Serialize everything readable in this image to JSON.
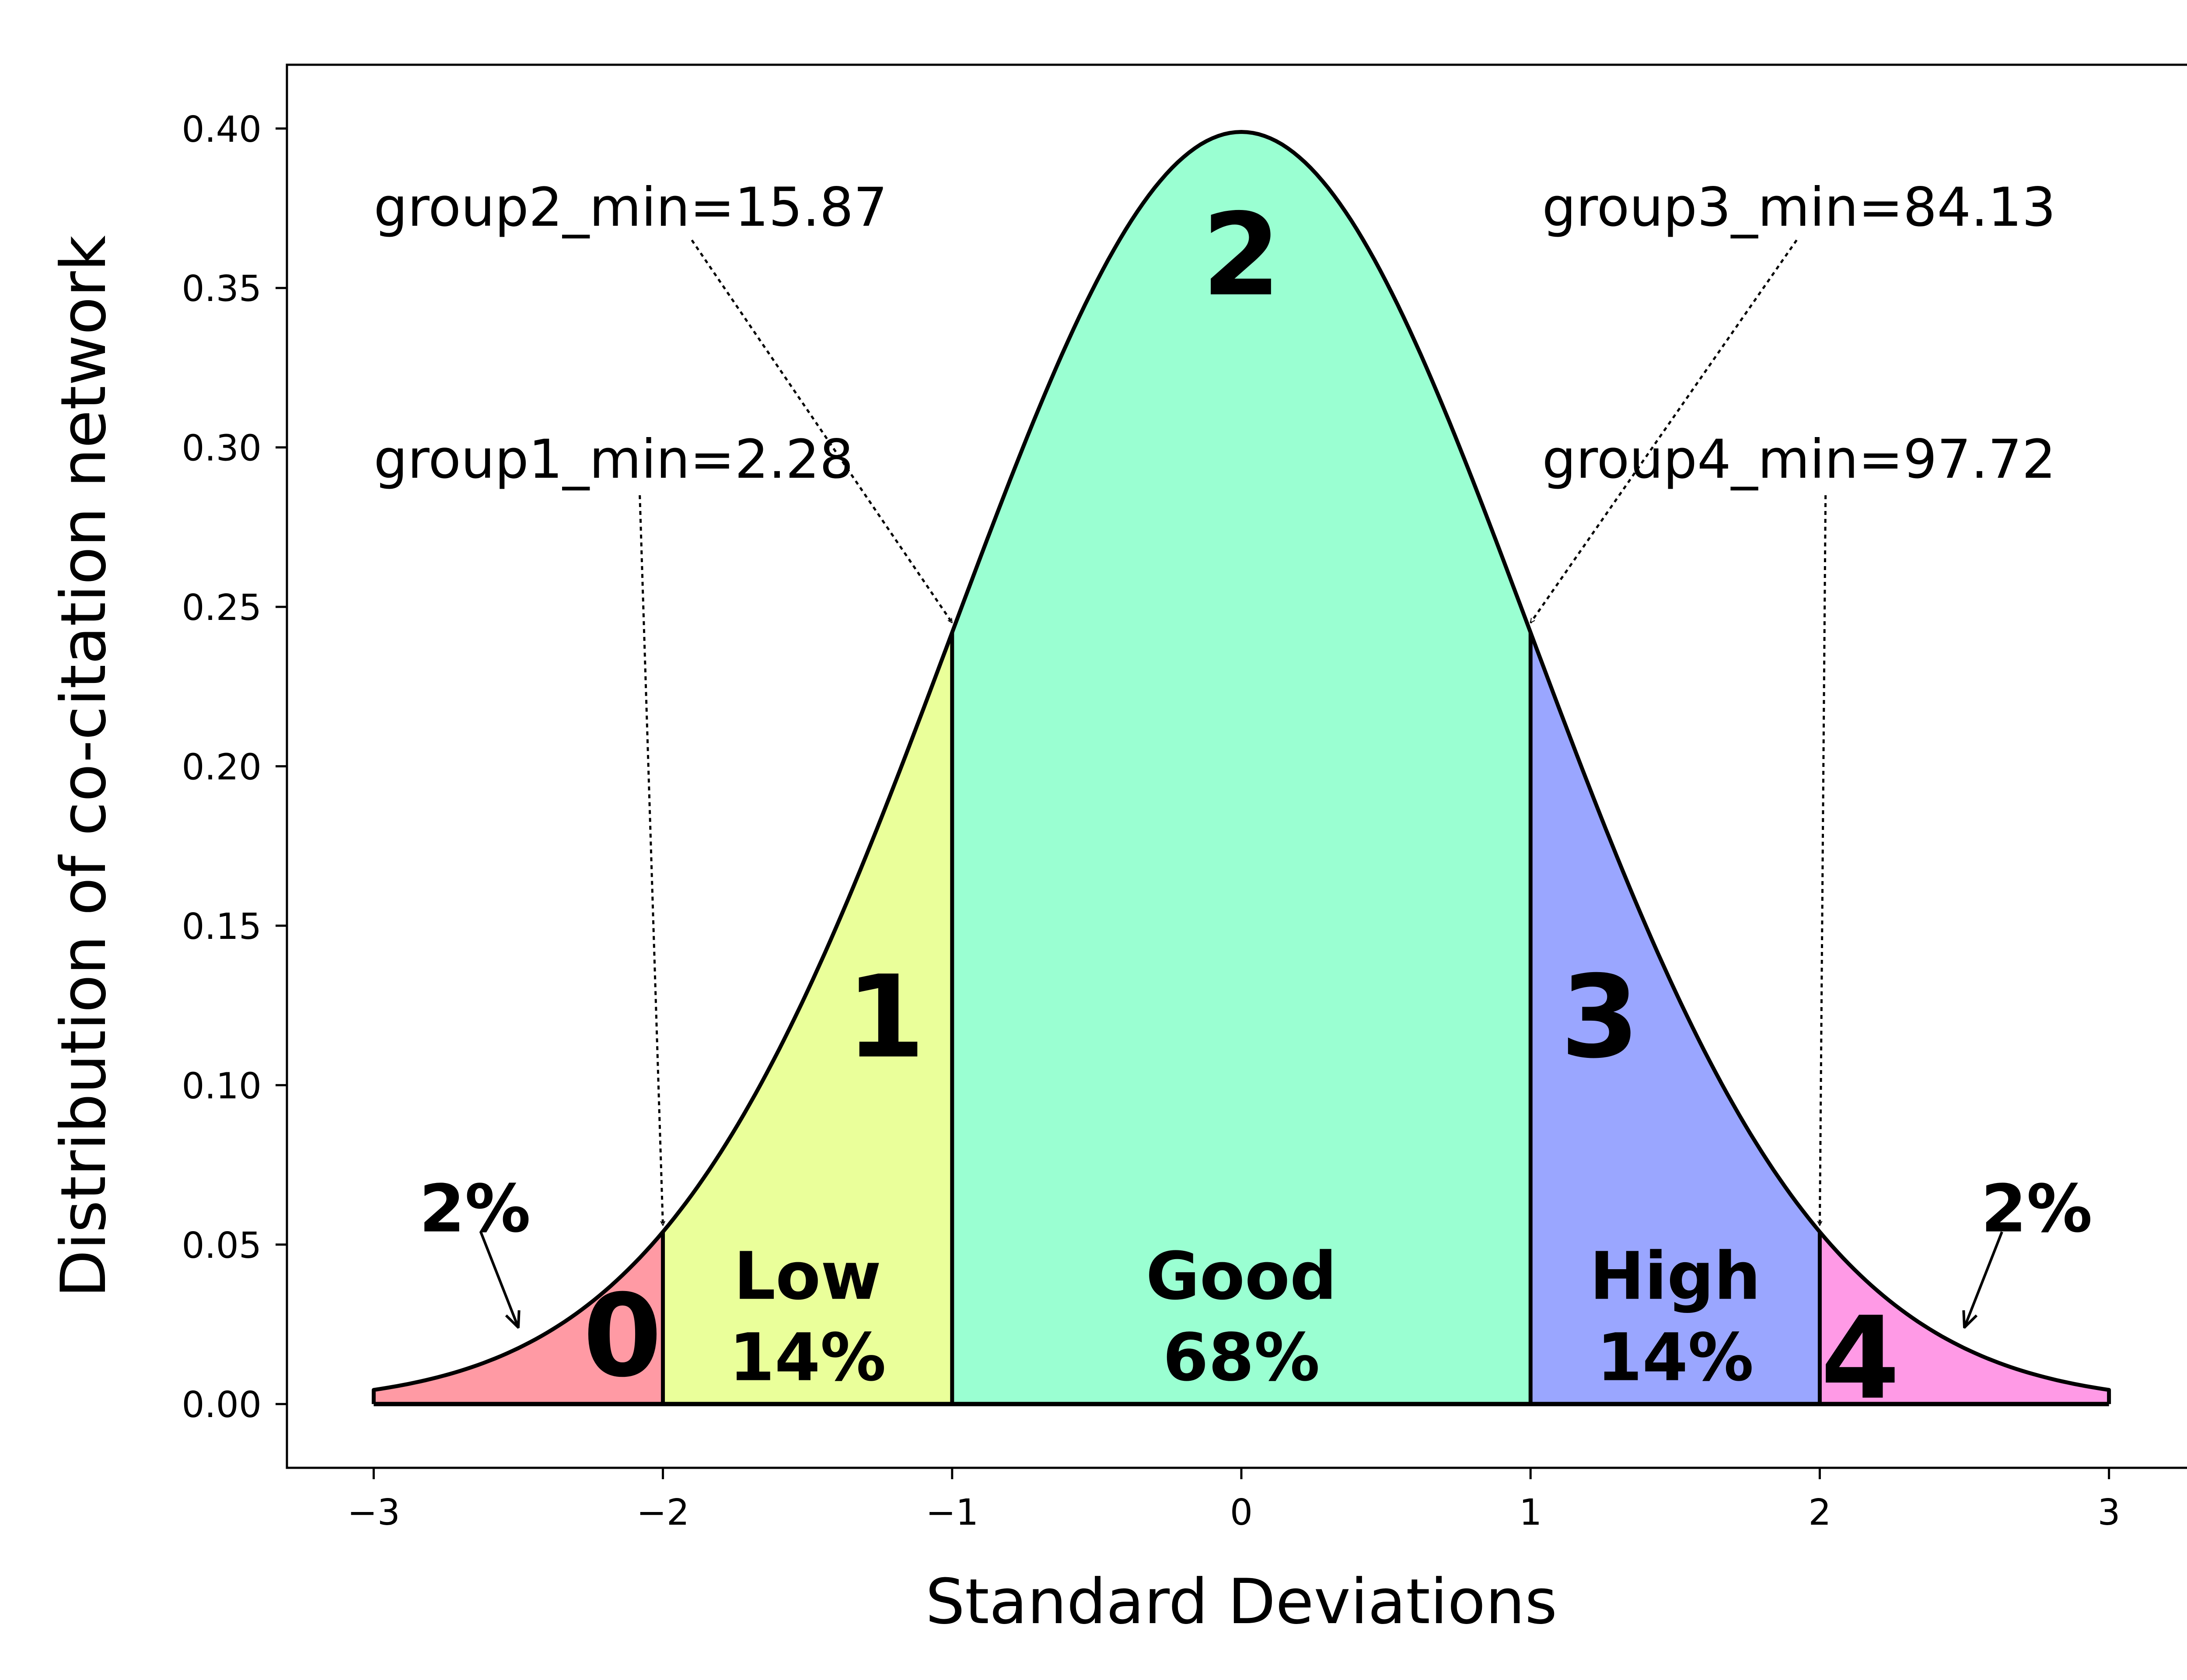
{
  "chart_data": {
    "type": "area",
    "title": "",
    "xlabel": "Standard Deviations",
    "ylabel": "Distribution of co-citation network",
    "xlim": [
      -3.3,
      3.3
    ],
    "ylim": [
      -0.02,
      0.42
    ],
    "x_ticks": [
      "−3",
      "−2",
      "−1",
      "0",
      "1",
      "2",
      "3"
    ],
    "x_tick_values": [
      -3,
      -2,
      -1,
      0,
      1,
      2,
      3
    ],
    "y_ticks": [
      "0.00",
      "0.05",
      "0.10",
      "0.15",
      "0.20",
      "0.25",
      "0.30",
      "0.35",
      "0.40"
    ],
    "y_tick_values": [
      0,
      0.05,
      0.1,
      0.15,
      0.2,
      0.25,
      0.3,
      0.35,
      0.4
    ],
    "curve": {
      "name": "",
      "mean": 0,
      "std": 1,
      "x_range": [
        -3,
        3
      ]
    },
    "regions": [
      {
        "id": "0",
        "x_from": -3,
        "x_to": -2,
        "color": "#ff9aa4",
        "group_label": "0"
      },
      {
        "id": "1",
        "x_from": -2,
        "x_to": -1,
        "color": "#eaff9a",
        "group_label": "1",
        "name": "Low",
        "percent": "14%"
      },
      {
        "id": "2",
        "x_from": -1,
        "x_to": 1,
        "color": "#9affd2",
        "group_label": "2",
        "name": "Good",
        "percent": "68%"
      },
      {
        "id": "3",
        "x_from": 1,
        "x_to": 2,
        "color": "#9aa6ff",
        "group_label": "3",
        "name": "High",
        "percent": "14%"
      },
      {
        "id": "4",
        "x_from": 2,
        "x_to": 3,
        "color": "#ff9ae6",
        "group_label": "4"
      }
    ],
    "annotations": [
      {
        "text": "group2_min=15.87",
        "text_x": -3,
        "text_y": 0.375,
        "arrow_from": [
          -1.9,
          0.365
        ],
        "arrow_to": [
          -1,
          0.245
        ]
      },
      {
        "text": "group1_min=2.28",
        "text_x": -3,
        "text_y": 0.296,
        "arrow_from": [
          -2.08,
          0.285
        ],
        "arrow_to": [
          -2,
          0.056
        ]
      },
      {
        "text": "group3_min=84.13",
        "text_x": 1.04,
        "text_y": 0.375,
        "arrow_from": [
          1.92,
          0.365
        ],
        "arrow_to": [
          1,
          0.245
        ]
      },
      {
        "text": "group4_min=97.72",
        "text_x": 1.04,
        "text_y": 0.296,
        "arrow_from": [
          2.02,
          0.285
        ],
        "arrow_to": [
          2,
          0.056
        ]
      }
    ],
    "tail_labels": [
      {
        "text": "2%",
        "text_x": -2.65,
        "text_y": 0.061,
        "arrow_from": [
          -2.63,
          0.054
        ],
        "arrow_to": [
          -2.5,
          0.024
        ]
      },
      {
        "text": "2%",
        "text_x": 2.75,
        "text_y": 0.061,
        "arrow_from": [
          2.63,
          0.054
        ],
        "arrow_to": [
          2.5,
          0.024
        ]
      }
    ],
    "grid": false,
    "legend": "none"
  }
}
